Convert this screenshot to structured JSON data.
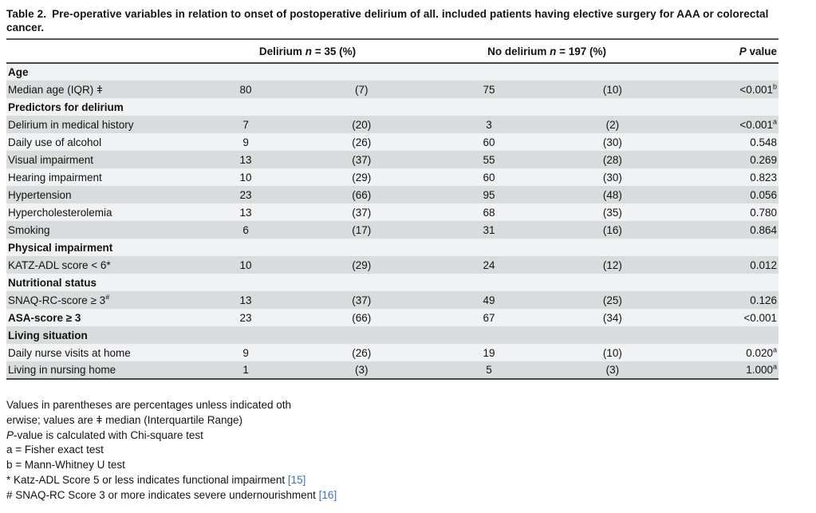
{
  "title": {
    "label": "Table 2.",
    "text": "Pre-operative variables in relation to onset of postoperative delirium of all. included patients having elective surgery for AAA or colorectal cancer."
  },
  "colors": {
    "row_shade": "#d9dcdd",
    "row_light": "#f1f2f4",
    "rule": "#484848",
    "reference_link_blue": "#3a79b8"
  },
  "table": {
    "header": {
      "delirium_pre": "Delirium ",
      "delirium_n": "n",
      "delirium_post": " = 35 (%)",
      "nodelirium_pre": "No delirium ",
      "nodelirium_n": "n",
      "nodelirium_post": " = 197 (%)",
      "p_italic": "P",
      "p_rest": " value"
    },
    "rows": [
      {
        "type": "section",
        "label": "Age"
      },
      {
        "type": "data",
        "label": "Median age (IQR) ǂ",
        "n1": "80",
        "pct1": "(7)",
        "n2": "75",
        "pct2": "(10)",
        "p": "<0.001",
        "p_sup": "b"
      },
      {
        "type": "section",
        "label": "Predictors for delirium"
      },
      {
        "type": "data",
        "label": "Delirium in medical history",
        "n1": "7",
        "pct1": "(20)",
        "n2": "3",
        "pct2": "(2)",
        "p": "<0.001",
        "p_sup": "a"
      },
      {
        "type": "data",
        "label": "Daily use of alcohol",
        "n1": "9",
        "pct1": "(26)",
        "n2": "60",
        "pct2": "(30)",
        "p": "0.548",
        "p_sup": ""
      },
      {
        "type": "data",
        "label": "Visual impairment",
        "n1": "13",
        "pct1": "(37)",
        "n2": "55",
        "pct2": "(28)",
        "p": "0.269",
        "p_sup": ""
      },
      {
        "type": "data",
        "label": "Hearing impairment",
        "n1": "10",
        "pct1": "(29)",
        "n2": "60",
        "pct2": "(30)",
        "p": "0.823",
        "p_sup": ""
      },
      {
        "type": "data",
        "label": "Hypertension",
        "n1": "23",
        "pct1": "(66)",
        "n2": "95",
        "pct2": "(48)",
        "p": "0.056",
        "p_sup": ""
      },
      {
        "type": "data",
        "label": "Hypercholesterolemia",
        "n1": "13",
        "pct1": "(37)",
        "n2": "68",
        "pct2": "(35)",
        "p": "0.780",
        "p_sup": ""
      },
      {
        "type": "data",
        "label": "Smoking",
        "n1": "6",
        "pct1": "(17)",
        "n2": "31",
        "pct2": "(16)",
        "p": "0.864",
        "p_sup": ""
      },
      {
        "type": "section",
        "label": "Physical impairment"
      },
      {
        "type": "data",
        "label": "KATZ-ADL score < 6*",
        "n1": "10",
        "pct1": "(29)",
        "n2": "24",
        "pct2": "(12)",
        "p": "0.012",
        "p_sup": ""
      },
      {
        "type": "section",
        "label": "Nutritional status"
      },
      {
        "type": "data",
        "label": "SNAQ-RC-score ≥ 3",
        "label_sup": "#",
        "n1": "13",
        "pct1": "(37)",
        "n2": "49",
        "pct2": "(25)",
        "p": "0.126",
        "p_sup": ""
      },
      {
        "type": "data",
        "label": "ASA-score ≥ 3",
        "bold": true,
        "n1": "23",
        "pct1": "(66)",
        "n2": "67",
        "pct2": "(34)",
        "p": "<0.001",
        "p_sup": ""
      },
      {
        "type": "section",
        "label": "Living situation"
      },
      {
        "type": "data",
        "label": "Daily nurse visits at home",
        "n1": "9",
        "pct1": "(26)",
        "n2": "19",
        "pct2": "(10)",
        "p": "0.020",
        "p_sup": "a"
      },
      {
        "type": "data",
        "label": "Living in nursing home",
        "n1": "1",
        "pct1": "(3)",
        "n2": "5",
        "pct2": "(3)",
        "p": "1.000",
        "p_sup": "a"
      }
    ]
  },
  "footnotes": [
    {
      "italic": "",
      "text": "Values in parentheses are percentages unless indicated oth",
      "link": ""
    },
    {
      "italic": "",
      "text": "erwise; values are ǂ median (Interquartile Range)",
      "link": ""
    },
    {
      "italic": "P",
      "text": "-value is calculated with Chi-square test",
      "link": ""
    },
    {
      "italic": "",
      "text": "a = Fisher exact test",
      "link": ""
    },
    {
      "italic": "",
      "text": "b = Mann-Whitney U test",
      "link": ""
    },
    {
      "italic": "",
      "text": "* Katz-ADL Score 5 or less indicates functional impairment ",
      "link": "[15]"
    },
    {
      "italic": "",
      "text": "# SNAQ-RC Score 3 or more indicates severe undernourishment ",
      "link": "[16]"
    }
  ]
}
